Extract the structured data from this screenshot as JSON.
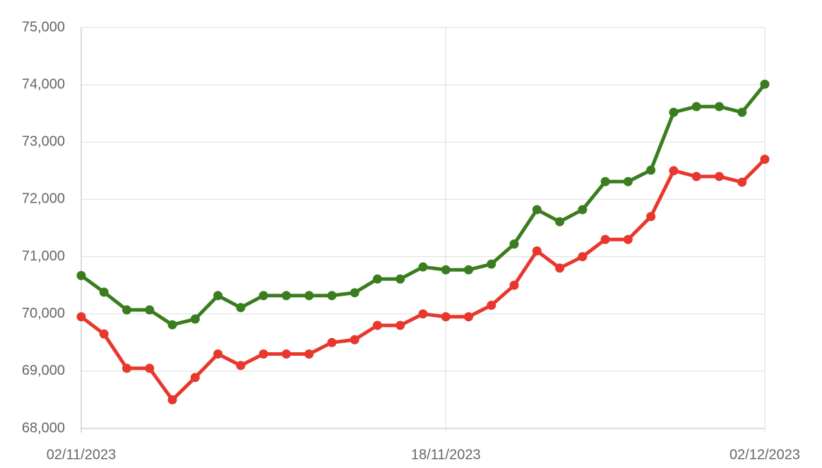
{
  "chart_data": {
    "type": "line",
    "categories": [
      "02/11/2023",
      null,
      null,
      null,
      null,
      null,
      null,
      null,
      null,
      null,
      null,
      null,
      null,
      null,
      null,
      null,
      "18/11/2023",
      null,
      null,
      null,
      null,
      null,
      null,
      null,
      null,
      null,
      null,
      null,
      null,
      null,
      "02/12/2023"
    ],
    "series": [
      {
        "color": "#3a7d1f",
        "values": [
          70670,
          70380,
          70070,
          70070,
          69810,
          69910,
          70320,
          70110,
          70320,
          70320,
          70320,
          70320,
          70370,
          70610,
          70610,
          70820,
          70770,
          70770,
          70870,
          71220,
          71820,
          71610,
          71820,
          72310,
          72310,
          72510,
          73520,
          73620,
          73620,
          73520,
          74010
        ]
      },
      {
        "color": "#e8372c",
        "values": [
          69950,
          69650,
          69050,
          69050,
          68500,
          68890,
          69300,
          69100,
          69300,
          69300,
          69300,
          69500,
          69550,
          69800,
          69800,
          70000,
          69950,
          69950,
          70150,
          70500,
          71100,
          70800,
          71000,
          71300,
          71300,
          71700,
          72500,
          72400,
          72400,
          72300,
          72700
        ]
      }
    ],
    "ylim": [
      68000,
      75000
    ],
    "yticks": [
      {
        "value": 68000,
        "label": "68,000"
      },
      {
        "value": 69000,
        "label": "69,000"
      },
      {
        "value": 70000,
        "label": "70,000"
      },
      {
        "value": 71000,
        "label": "71,000"
      },
      {
        "value": 72000,
        "label": "72,000"
      },
      {
        "value": 73000,
        "label": "73,000"
      },
      {
        "value": 74000,
        "label": "74,000"
      },
      {
        "value": 75000,
        "label": "75,000"
      }
    ],
    "grid": true
  }
}
